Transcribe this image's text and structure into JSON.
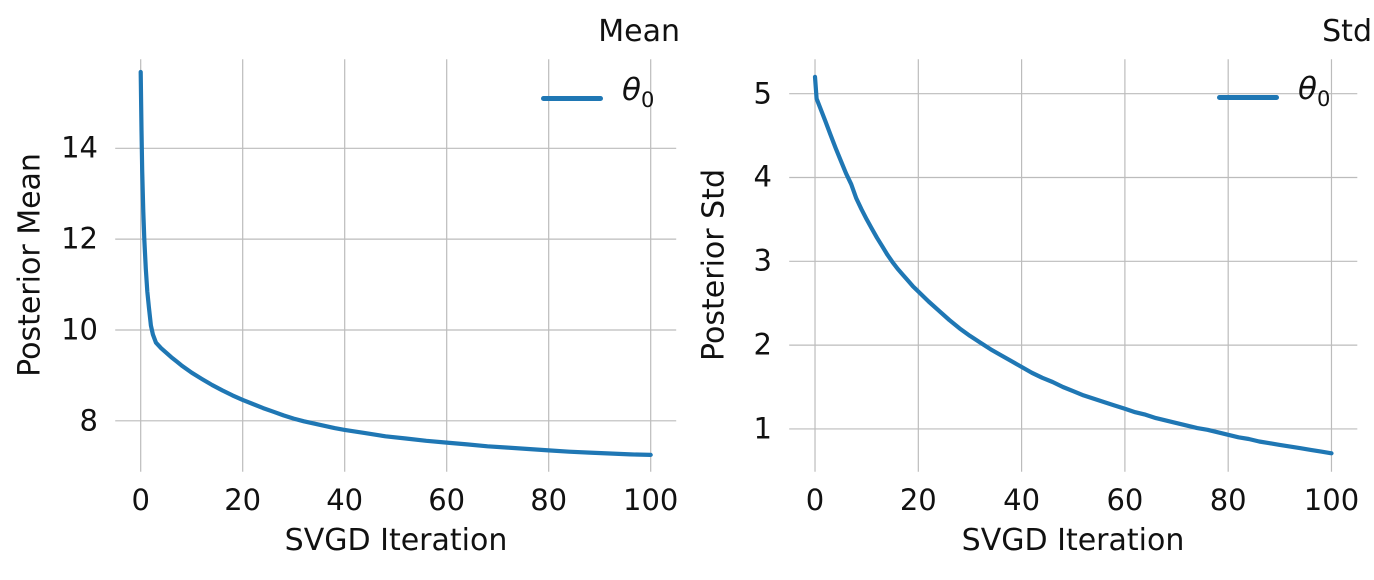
{
  "chart_data": [
    {
      "type": "line",
      "title": "Mean",
      "xlabel": "SVGD Iteration",
      "ylabel": "Posterior Mean",
      "grid": true,
      "legend_position": "upper right",
      "legend": [
        {
          "symbol": "θ",
          "subscript": "0"
        }
      ],
      "xlim": [
        -5,
        105
      ],
      "ylim": [
        6.88,
        15.96
      ],
      "xticks": [
        0,
        20,
        40,
        60,
        80,
        100
      ],
      "yticks": [
        8,
        10,
        12,
        14
      ],
      "series": [
        {
          "name": "theta_0",
          "color": "#1f77b4",
          "points": [
            [
              0,
              15.68
            ],
            [
              0.15,
              14.4
            ],
            [
              0.3,
              13.5
            ],
            [
              0.5,
              12.6
            ],
            [
              0.7,
              12.0
            ],
            [
              1,
              11.35
            ],
            [
              1.3,
              10.85
            ],
            [
              1.6,
              10.5
            ],
            [
              2,
              10.1
            ],
            [
              2.4,
              9.9
            ],
            [
              3,
              9.72
            ],
            [
              4,
              9.6
            ],
            [
              5,
              9.5
            ],
            [
              6,
              9.4
            ],
            [
              7,
              9.31
            ],
            [
              8,
              9.22
            ],
            [
              9,
              9.14
            ],
            [
              10,
              9.06
            ],
            [
              12,
              8.92
            ],
            [
              14,
              8.79
            ],
            [
              16,
              8.67
            ],
            [
              18,
              8.56
            ],
            [
              20,
              8.46
            ],
            [
              22,
              8.37
            ],
            [
              24,
              8.28
            ],
            [
              26,
              8.2
            ],
            [
              28,
              8.12
            ],
            [
              30,
              8.05
            ],
            [
              32,
              7.99
            ],
            [
              34,
              7.94
            ],
            [
              36,
              7.89
            ],
            [
              38,
              7.84
            ],
            [
              40,
              7.8
            ],
            [
              44,
              7.73
            ],
            [
              48,
              7.66
            ],
            [
              52,
              7.61
            ],
            [
              56,
              7.56
            ],
            [
              60,
              7.52
            ],
            [
              64,
              7.48
            ],
            [
              68,
              7.44
            ],
            [
              72,
              7.41
            ],
            [
              76,
              7.38
            ],
            [
              80,
              7.35
            ],
            [
              84,
              7.32
            ],
            [
              88,
              7.3
            ],
            [
              92,
              7.28
            ],
            [
              96,
              7.26
            ],
            [
              100,
              7.25
            ]
          ]
        }
      ]
    },
    {
      "type": "line",
      "title": "Std",
      "xlabel": "SVGD Iteration",
      "ylabel": "Posterior Std",
      "grid": true,
      "legend_position": "upper right",
      "legend": [
        {
          "symbol": "θ",
          "subscript": "0"
        }
      ],
      "xlim": [
        -5,
        105
      ],
      "ylim": [
        0.49,
        5.41
      ],
      "xticks": [
        0,
        20,
        40,
        60,
        80,
        100
      ],
      "yticks": [
        1,
        2,
        3,
        4,
        5
      ],
      "series": [
        {
          "name": "theta_0",
          "color": "#1f77b4",
          "points": [
            [
              0,
              5.2
            ],
            [
              0.3,
              4.94
            ],
            [
              1,
              4.83
            ],
            [
              2,
              4.67
            ],
            [
              3,
              4.51
            ],
            [
              4,
              4.35
            ],
            [
              5,
              4.2
            ],
            [
              6,
              4.05
            ],
            [
              7,
              3.92
            ],
            [
              8,
              3.75
            ],
            [
              9,
              3.62
            ],
            [
              10,
              3.5
            ],
            [
              11,
              3.39
            ],
            [
              12,
              3.28
            ],
            [
              13,
              3.18
            ],
            [
              14,
              3.08
            ],
            [
              15,
              2.99
            ],
            [
              16,
              2.91
            ],
            [
              17,
              2.84
            ],
            [
              18,
              2.77
            ],
            [
              19,
              2.7
            ],
            [
              20,
              2.64
            ],
            [
              22,
              2.52
            ],
            [
              24,
              2.41
            ],
            [
              26,
              2.3
            ],
            [
              28,
              2.2
            ],
            [
              30,
              2.11
            ],
            [
              32,
              2.03
            ],
            [
              34,
              1.95
            ],
            [
              36,
              1.88
            ],
            [
              38,
              1.81
            ],
            [
              40,
              1.74
            ],
            [
              42,
              1.67
            ],
            [
              44,
              1.61
            ],
            [
              46,
              1.56
            ],
            [
              48,
              1.5
            ],
            [
              50,
              1.45
            ],
            [
              52,
              1.4
            ],
            [
              54,
              1.36
            ],
            [
              56,
              1.32
            ],
            [
              58,
              1.28
            ],
            [
              60,
              1.24
            ],
            [
              62,
              1.2
            ],
            [
              64,
              1.17
            ],
            [
              66,
              1.13
            ],
            [
              68,
              1.1
            ],
            [
              70,
              1.07
            ],
            [
              72,
              1.04
            ],
            [
              74,
              1.01
            ],
            [
              76,
              0.99
            ],
            [
              78,
              0.96
            ],
            [
              80,
              0.93
            ],
            [
              82,
              0.9
            ],
            [
              84,
              0.88
            ],
            [
              86,
              0.85
            ],
            [
              88,
              0.83
            ],
            [
              90,
              0.81
            ],
            [
              92,
              0.79
            ],
            [
              94,
              0.77
            ],
            [
              96,
              0.75
            ],
            [
              98,
              0.73
            ],
            [
              100,
              0.71
            ]
          ]
        }
      ]
    }
  ],
  "colors": {
    "line": "#1f77b4",
    "grid": "#bcbcbc",
    "text": "#111111",
    "background": "#ffffff"
  }
}
